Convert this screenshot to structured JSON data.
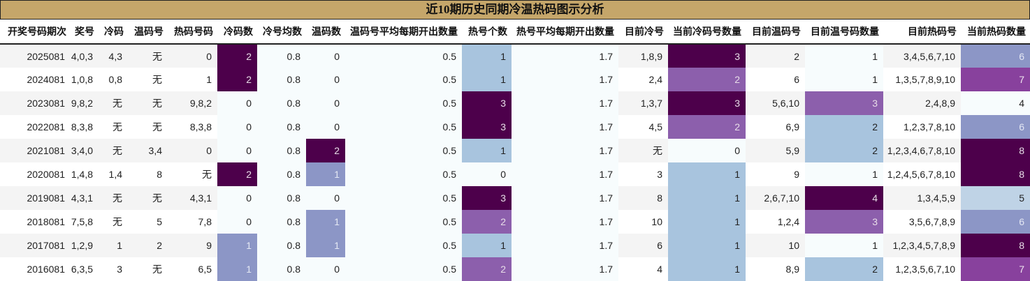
{
  "title": "近10期历史同期冷温热码图示分析",
  "headers": [
    "开奖号码期次",
    "奖号",
    "冷码",
    "温码号",
    "热码号码",
    "冷码数",
    "冷号均数",
    "温码数",
    "温码号平均每期开出数量",
    "热号个数",
    "热号平均每期开出数量",
    "目前冷号",
    "当前冷码号数量",
    "目前温码号",
    "目前温号码数量",
    "目前热码号",
    "当前热码数量"
  ],
  "colors": {
    "title_bg": "#c5a66a",
    "dark_purple": "#4d004b",
    "medium_purple": "#8c5fac",
    "plum": "#88419d",
    "lavender": "#8c96c6",
    "light_blue": "#a8c4de",
    "pale_blue": "#bfd3e6",
    "pale_bg": "#f7fcfd"
  },
  "rows": [
    {
      "cells": [
        "2025081",
        "4,0,3",
        "4,3",
        "无",
        "0",
        "2",
        "0.8",
        "0",
        "0.5",
        "1",
        "1.7",
        "1,8,9",
        "3",
        "2",
        "1",
        "3,4,5,6,7,10",
        "6"
      ],
      "styles": [
        "",
        "",
        "",
        "",
        "",
        "c-dark",
        "bg",
        "bg",
        "bg",
        "c-lblue",
        "bg",
        "",
        "c-dark",
        "",
        "c-pale",
        "",
        "c-lav"
      ]
    },
    {
      "cells": [
        "2024081",
        "1,0,8",
        "0,8",
        "无",
        "1",
        "2",
        "0.8",
        "0",
        "0.5",
        "1",
        "1.7",
        "2,4",
        "2",
        "6",
        "1",
        "1,3,5,7,8,9,10",
        "7"
      ],
      "styles": [
        "",
        "",
        "",
        "",
        "",
        "c-dark",
        "bg",
        "bg",
        "bg",
        "c-lblue",
        "bg",
        "",
        "c-mid",
        "",
        "c-pale",
        "",
        "c-plum"
      ]
    },
    {
      "cells": [
        "2023081",
        "9,8,2",
        "无",
        "无",
        "9,8,2",
        "0",
        "0.8",
        "0",
        "0.5",
        "3",
        "1.7",
        "1,3,7",
        "3",
        "5,6,10",
        "3",
        "2,4,8,9",
        "4"
      ],
      "styles": [
        "",
        "",
        "",
        "",
        "",
        "bg",
        "bg",
        "bg",
        "bg",
        "c-dark",
        "bg",
        "",
        "c-dark",
        "",
        "c-mid",
        "",
        "c-pale"
      ]
    },
    {
      "cells": [
        "2022081",
        "8,3,8",
        "无",
        "无",
        "8,3,8",
        "0",
        "0.8",
        "0",
        "0.5",
        "3",
        "1.7",
        "4,5",
        "2",
        "6,9",
        "2",
        "1,2,3,7,8,10",
        "6"
      ],
      "styles": [
        "",
        "",
        "",
        "",
        "",
        "bg",
        "bg",
        "bg",
        "bg",
        "c-dark",
        "bg",
        "",
        "c-mid",
        "",
        "c-lblue",
        "",
        "c-lav"
      ]
    },
    {
      "cells": [
        "2021081",
        "3,4,0",
        "无",
        "3,4",
        "0",
        "0",
        "0.8",
        "2",
        "0.5",
        "1",
        "1.7",
        "无",
        "0",
        "5,9",
        "2",
        "1,2,3,4,6,7,8,10",
        "8"
      ],
      "styles": [
        "",
        "",
        "",
        "",
        "",
        "bg",
        "bg",
        "c-dark",
        "bg",
        "c-lblue",
        "bg",
        "",
        "c-pale",
        "",
        "c-lblue",
        "",
        "c-dark"
      ]
    },
    {
      "cells": [
        "2020081",
        "1,4,8",
        "1,4",
        "8",
        "无",
        "2",
        "0.8",
        "1",
        "0.5",
        "0",
        "1.7",
        "3",
        "1",
        "9",
        "1",
        "1,2,4,5,6,7,8,10",
        "8"
      ],
      "styles": [
        "",
        "",
        "",
        "",
        "",
        "c-dark",
        "bg",
        "c-lav",
        "bg",
        "bg",
        "bg",
        "",
        "c-lblue",
        "",
        "c-pale",
        "",
        "c-dark"
      ]
    },
    {
      "cells": [
        "2019081",
        "4,3,1",
        "无",
        "无",
        "4,3,1",
        "0",
        "0.8",
        "0",
        "0.5",
        "3",
        "1.7",
        "8",
        "1",
        "2,6,7,10",
        "4",
        "1,3,4,5,9",
        "5"
      ],
      "styles": [
        "",
        "",
        "",
        "",
        "",
        "bg",
        "bg",
        "bg",
        "bg",
        "c-dark",
        "bg",
        "",
        "c-lblue",
        "",
        "c-dark",
        "",
        "c-pblue"
      ]
    },
    {
      "cells": [
        "2018081",
        "7,5,8",
        "无",
        "5",
        "7,8",
        "0",
        "0.8",
        "1",
        "0.5",
        "2",
        "1.7",
        "10",
        "1",
        "1,2,4",
        "3",
        "3,5,6,7,8,9",
        "6"
      ],
      "styles": [
        "",
        "",
        "",
        "",
        "",
        "bg",
        "bg",
        "c-lav",
        "bg",
        "c-mid",
        "bg",
        "",
        "c-lblue",
        "",
        "c-mid",
        "",
        "c-lav"
      ]
    },
    {
      "cells": [
        "2017081",
        "1,2,9",
        "1",
        "2",
        "9",
        "1",
        "0.8",
        "1",
        "0.5",
        "1",
        "1.7",
        "6",
        "1",
        "10",
        "1",
        "1,2,3,4,5,7,8,9",
        "8"
      ],
      "styles": [
        "",
        "",
        "",
        "",
        "",
        "c-lav",
        "bg",
        "c-lav",
        "bg",
        "c-lblue",
        "bg",
        "",
        "c-lblue",
        "",
        "c-pale",
        "",
        "c-dark"
      ]
    },
    {
      "cells": [
        "2016081",
        "6,3,5",
        "3",
        "无",
        "6,5",
        "1",
        "0.8",
        "0",
        "0.5",
        "2",
        "1.7",
        "4",
        "1",
        "8,9",
        "2",
        "1,2,3,5,6,7,10",
        "7"
      ],
      "styles": [
        "",
        "",
        "",
        "",
        "",
        "c-lav",
        "bg",
        "bg",
        "bg",
        "c-mid",
        "bg",
        "",
        "c-lblue",
        "",
        "c-lblue",
        "",
        "c-plum"
      ]
    }
  ]
}
